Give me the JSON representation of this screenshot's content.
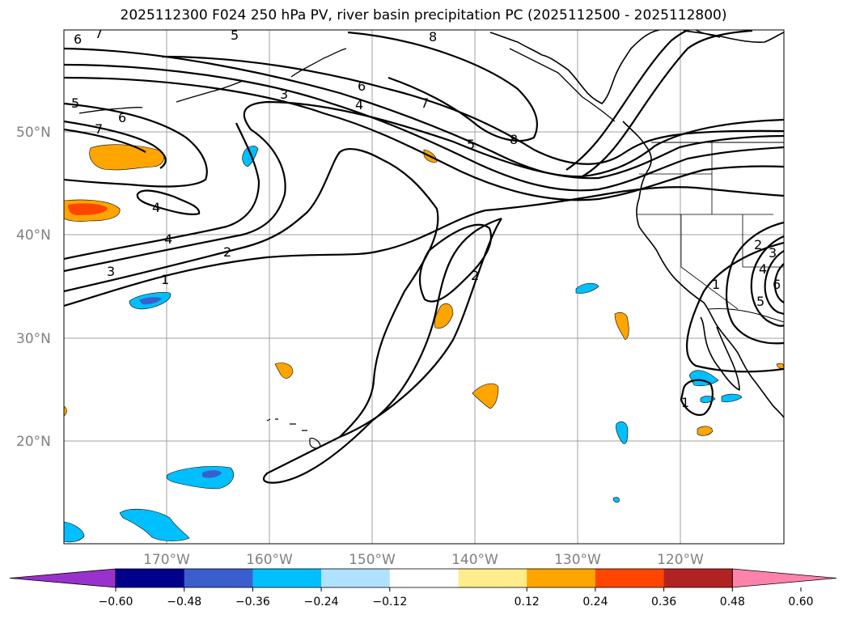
{
  "title": "2025112300 F024 250 hPa PV, river basin precipitation PC (2025112500 - 2025112800)",
  "colors": {
    "grid": "#a0a0a0",
    "contour": "#000000",
    "coast": "#000000"
  },
  "lat_labels": [
    "50°N",
    "40°N",
    "30°N",
    "20°N"
  ],
  "lon_labels": [
    "170°W",
    "160°W",
    "150°W",
    "140°W",
    "130°W",
    "120°W"
  ],
  "contour_labels": [
    "6",
    "7",
    "5",
    "8",
    "5",
    "6",
    "7",
    "3",
    "4",
    "6",
    "7",
    "5",
    "8",
    "4",
    "4",
    "2",
    "3",
    "1",
    "2",
    "2",
    "3",
    "4",
    "1",
    "5",
    "6",
    "1"
  ],
  "colorbar": {
    "ticks": [
      "−0.60",
      "−0.48",
      "−0.36",
      "−0.24",
      "−0.12",
      "0.12",
      "0.24",
      "0.36",
      "0.48",
      "0.60"
    ],
    "colors": [
      "#9932cc",
      "#00008b",
      "#3a5fcd",
      "#00bfff",
      "#b0e2ff",
      "#ffffff",
      "#ffec8b",
      "#ffa500",
      "#ff4500",
      "#b22222",
      "#ff82ab"
    ]
  }
}
